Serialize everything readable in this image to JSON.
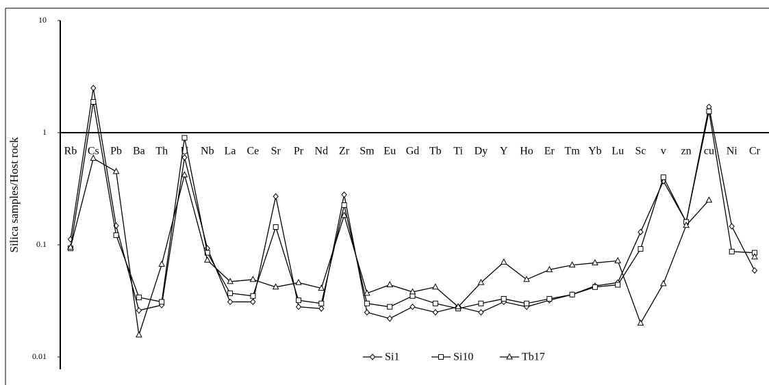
{
  "chart_data": {
    "type": "line",
    "ylabel": "Silica samples/Host rock",
    "log_y": true,
    "ylim": [
      0.01,
      10
    ],
    "yticks": [
      0.01,
      0.1,
      1,
      10
    ],
    "categories": [
      "Rb",
      "Cs",
      "Pb",
      "Ba",
      "Th",
      "U",
      "Nb",
      "La",
      "Ce",
      "Sr",
      "Pr",
      "Nd",
      "Zr",
      "Sm",
      "Eu",
      "Gd",
      "Tb",
      "Ti",
      "Dy",
      "Y",
      "Ho",
      "Er",
      "Tm",
      "Yb",
      "Lu",
      "Sc",
      "v",
      "zn",
      "cu",
      "Ni",
      "Cr"
    ],
    "legend": "bottom",
    "series": [
      {
        "name": "Si1",
        "color": "#000000",
        "marker": "diamond",
        "values": [
          0.112,
          2.5,
          0.148,
          0.026,
          0.029,
          0.6,
          0.093,
          0.031,
          0.031,
          0.27,
          0.028,
          0.027,
          0.28,
          0.025,
          0.022,
          0.028,
          0.025,
          0.028,
          0.025,
          0.031,
          0.028,
          0.032,
          0.036,
          0.043,
          0.046,
          0.13,
          0.37,
          0.16,
          1.7,
          0.146,
          0.059
        ]
      },
      {
        "name": "Si10",
        "color": "#000000",
        "marker": "square",
        "values": [
          0.093,
          1.88,
          0.122,
          0.034,
          0.031,
          0.9,
          0.085,
          0.037,
          0.035,
          0.144,
          0.032,
          0.03,
          0.226,
          0.03,
          0.028,
          0.035,
          0.03,
          0.027,
          0.03,
          0.033,
          0.03,
          0.033,
          0.036,
          0.042,
          0.044,
          0.092,
          0.4,
          0.16,
          1.55,
          0.087,
          0.085
        ]
      },
      {
        "name": "Tb17",
        "color": "#000000",
        "marker": "triangle",
        "values": [
          0.095,
          0.59,
          0.45,
          0.0157,
          0.067,
          0.42,
          0.073,
          0.047,
          0.049,
          0.042,
          0.046,
          0.041,
          0.183,
          0.037,
          0.044,
          0.038,
          0.042,
          0.028,
          0.046,
          0.07,
          0.049,
          0.06,
          0.066,
          0.069,
          0.072,
          0.02,
          0.045,
          0.149,
          0.25,
          null,
          0.078
        ]
      }
    ]
  }
}
